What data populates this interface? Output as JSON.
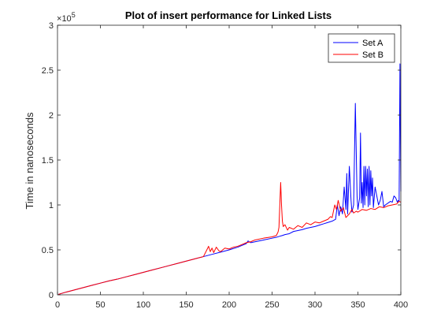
{
  "chart_data": {
    "type": "line",
    "title": "Plot of insert performance for Linked Lists",
    "xlabel": "",
    "ylabel": "Time in nanoseconds",
    "y_exponent_label": "10",
    "y_exponent_power": "5",
    "y_scale": 100000,
    "xlim": [
      0,
      400
    ],
    "ylim": [
      0,
      300000
    ],
    "x_ticks": [
      0,
      50,
      100,
      150,
      200,
      250,
      300,
      350,
      400
    ],
    "x_tick_labels": [
      "0",
      "50",
      "100",
      "150",
      "200",
      "250",
      "300",
      "350",
      "400"
    ],
    "y_ticks": [
      0,
      50000,
      100000,
      150000,
      200000,
      250000,
      300000
    ],
    "y_tick_labels": [
      "0",
      "0.5",
      "1",
      "1.5",
      "2",
      "2.5",
      "3"
    ],
    "grid": false,
    "legend_position": "top-right",
    "series": [
      {
        "name": "Set A",
        "color": "#0000ff",
        "points": [
          [
            1,
            500
          ],
          [
            10,
            3000
          ],
          [
            20,
            5500
          ],
          [
            30,
            8000
          ],
          [
            40,
            10500
          ],
          [
            50,
            13000
          ],
          [
            60,
            15500
          ],
          [
            70,
            17500
          ],
          [
            80,
            20000
          ],
          [
            90,
            22500
          ],
          [
            100,
            25000
          ],
          [
            110,
            27500
          ],
          [
            120,
            30000
          ],
          [
            130,
            32500
          ],
          [
            140,
            35000
          ],
          [
            150,
            37500
          ],
          [
            160,
            40000
          ],
          [
            170,
            42500
          ],
          [
            180,
            45000
          ],
          [
            190,
            47500
          ],
          [
            200,
            50000
          ],
          [
            210,
            53000
          ],
          [
            215,
            55000
          ],
          [
            220,
            57000
          ],
          [
            222,
            60000
          ],
          [
            225,
            58000
          ],
          [
            230,
            59000
          ],
          [
            240,
            61000
          ],
          [
            250,
            63000
          ],
          [
            255,
            64000
          ],
          [
            260,
            65500
          ],
          [
            262,
            66000
          ],
          [
            265,
            67000
          ],
          [
            270,
            68000
          ],
          [
            275,
            70500
          ],
          [
            280,
            71500
          ],
          [
            285,
            72500
          ],
          [
            290,
            74000
          ],
          [
            295,
            75000
          ],
          [
            300,
            76000
          ],
          [
            305,
            77500
          ],
          [
            310,
            79000
          ],
          [
            315,
            80500
          ],
          [
            320,
            82000
          ],
          [
            324,
            84000
          ],
          [
            326,
            100000
          ],
          [
            328,
            88000
          ],
          [
            330,
            98000
          ],
          [
            332,
            90000
          ],
          [
            334,
            120000
          ],
          [
            336,
            95000
          ],
          [
            337,
            135000
          ],
          [
            338,
            90000
          ],
          [
            340,
            143000
          ],
          [
            342,
            105000
          ],
          [
            343,
            92000
          ],
          [
            345,
            100000
          ],
          [
            347,
            213000
          ],
          [
            349,
            110000
          ],
          [
            350,
            95000
          ],
          [
            352,
            108000
          ],
          [
            353,
            180000
          ],
          [
            354,
            102000
          ],
          [
            355,
            125000
          ],
          [
            356,
            97000
          ],
          [
            357,
            143000
          ],
          [
            358,
            100000
          ],
          [
            359,
            143000
          ],
          [
            360,
            110000
          ],
          [
            361,
            140000
          ],
          [
            362,
            98000
          ],
          [
            363,
            143000
          ],
          [
            364,
            100000
          ],
          [
            365,
            138000
          ],
          [
            366,
            110000
          ],
          [
            367,
            130000
          ],
          [
            368,
            97000
          ],
          [
            370,
            120000
          ],
          [
            372,
            110000
          ],
          [
            374,
            100000
          ],
          [
            376,
            105000
          ],
          [
            378,
            115000
          ],
          [
            380,
            98000
          ],
          [
            382,
            100000
          ],
          [
            385,
            102000
          ],
          [
            388,
            104000
          ],
          [
            390,
            103000
          ],
          [
            392,
            110000
          ],
          [
            394,
            108000
          ],
          [
            396,
            103000
          ],
          [
            397,
            105000
          ],
          [
            398,
            104000
          ],
          [
            399,
            257000
          ],
          [
            400,
            115000
          ]
        ]
      },
      {
        "name": "Set B",
        "color": "#ff0000",
        "points": [
          [
            1,
            500
          ],
          [
            10,
            3000
          ],
          [
            20,
            5500
          ],
          [
            30,
            8000
          ],
          [
            40,
            10500
          ],
          [
            50,
            13000
          ],
          [
            60,
            15500
          ],
          [
            70,
            17500
          ],
          [
            80,
            20000
          ],
          [
            90,
            22500
          ],
          [
            100,
            25000
          ],
          [
            110,
            27500
          ],
          [
            120,
            30000
          ],
          [
            130,
            32500
          ],
          [
            140,
            35000
          ],
          [
            150,
            37500
          ],
          [
            160,
            40000
          ],
          [
            170,
            42500
          ],
          [
            174,
            50000
          ],
          [
            176,
            54000
          ],
          [
            178,
            48000
          ],
          [
            180,
            52000
          ],
          [
            182,
            47000
          ],
          [
            185,
            53000
          ],
          [
            188,
            49000
          ],
          [
            190,
            48000
          ],
          [
            195,
            52000
          ],
          [
            200,
            51000
          ],
          [
            205,
            53000
          ],
          [
            210,
            54000
          ],
          [
            215,
            56000
          ],
          [
            220,
            58000
          ],
          [
            225,
            59000
          ],
          [
            230,
            61000
          ],
          [
            240,
            63000
          ],
          [
            250,
            64500
          ],
          [
            255,
            66000
          ],
          [
            257,
            70000
          ],
          [
            258,
            75000
          ],
          [
            260,
            125000
          ],
          [
            261,
            100000
          ],
          [
            262,
            82000
          ],
          [
            263,
            76000
          ],
          [
            265,
            78000
          ],
          [
            268,
            72000
          ],
          [
            270,
            75000
          ],
          [
            275,
            73000
          ],
          [
            280,
            77000
          ],
          [
            285,
            75000
          ],
          [
            290,
            80000
          ],
          [
            295,
            78000
          ],
          [
            300,
            81000
          ],
          [
            305,
            80000
          ],
          [
            310,
            82000
          ],
          [
            315,
            84000
          ],
          [
            318,
            87000
          ],
          [
            320,
            86000
          ],
          [
            323,
            100000
          ],
          [
            325,
            95000
          ],
          [
            327,
            105000
          ],
          [
            330,
            93000
          ],
          [
            333,
            97000
          ],
          [
            336,
            86000
          ],
          [
            340,
            90000
          ],
          [
            343,
            95000
          ],
          [
            345,
            91000
          ],
          [
            348,
            93000
          ],
          [
            350,
            92000
          ],
          [
            355,
            95000
          ],
          [
            360,
            94000
          ],
          [
            365,
            96000
          ],
          [
            370,
            95000
          ],
          [
            375,
            98000
          ],
          [
            380,
            97000
          ],
          [
            385,
            99000
          ],
          [
            390,
            100000
          ],
          [
            395,
            101000
          ],
          [
            398,
            104000
          ],
          [
            400,
            103000
          ]
        ]
      }
    ]
  }
}
